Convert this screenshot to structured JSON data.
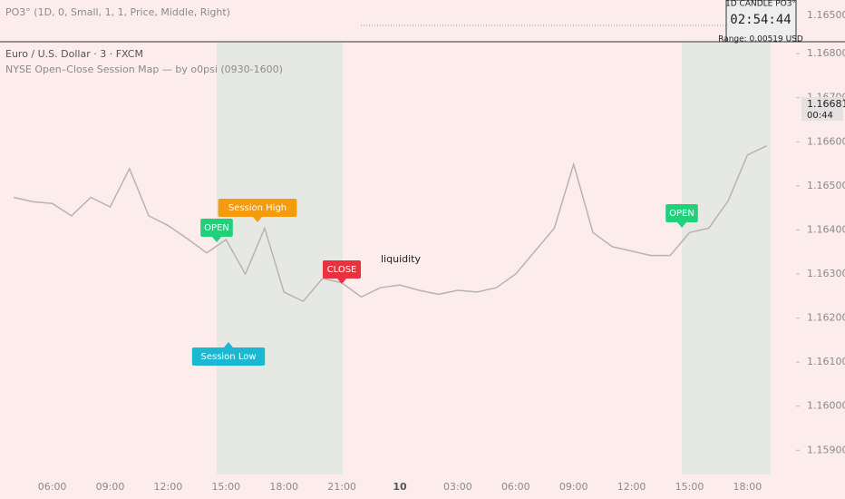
{
  "indicator_pane": {
    "settings": "PO3° (1D, 0, Small, 1, 1, Price, Middle, Right)",
    "box_title": "1D CANDLE PO3°",
    "countdown": "02:54:44",
    "range": "Range: 0.00519 USD",
    "price_label": "1.16500"
  },
  "chart_data": {
    "type": "line",
    "title": "Euro / U.S. Dollar · 3 · FXCM",
    "subtitle": "NYSE Open–Close Session Map — by o0psi (0930-1600)",
    "color": "#b8b2b2",
    "categories": [
      null,
      null,
      "06:00",
      null,
      null,
      "09:00",
      null,
      null,
      "12:00",
      null,
      null,
      "15:00",
      null,
      null,
      "18:00",
      null,
      null,
      "21:00",
      null,
      null,
      "10",
      null,
      null,
      "03:00",
      null,
      null,
      "06:00",
      null,
      null,
      "09:00",
      null,
      null,
      "12:00",
      null,
      null,
      "15:00",
      null,
      null,
      "18:00",
      null
    ],
    "values": [
      1.16474,
      1.16464,
      1.1646,
      1.16432,
      1.16474,
      1.16452,
      1.16539,
      1.16432,
      1.1641,
      1.1638,
      1.16348,
      1.16378,
      1.163,
      1.16404,
      1.16259,
      1.16238,
      1.1629,
      1.1628,
      1.16248,
      1.16269,
      1.16275,
      1.16263,
      1.16254,
      1.16263,
      1.16259,
      1.16269,
      1.163,
      1.16352,
      1.16404,
      1.16549,
      1.16394,
      1.16362,
      1.16352,
      1.16342,
      1.16342,
      1.16394,
      1.16404,
      1.16466,
      1.1657,
      1.16591
    ],
    "ylim": [
      1.15845,
      1.16825
    ],
    "yticks": [
      {
        "value": 1.159,
        "label": "1.15900"
      },
      {
        "value": 1.16,
        "label": "1.16000"
      },
      {
        "value": 1.161,
        "label": "1.16100"
      },
      {
        "value": 1.162,
        "label": "1.16200"
      },
      {
        "value": 1.163,
        "label": "1.16300"
      },
      {
        "value": 1.164,
        "label": "1.16400"
      },
      {
        "value": 1.165,
        "label": "1.16500"
      },
      {
        "value": 1.166,
        "label": "1.16600"
      },
      {
        "value": 1.167,
        "label": "1.16700"
      },
      {
        "value": 1.168,
        "label": "1.16800"
      }
    ],
    "annotations": [
      "OPEN",
      "Session High",
      "Session Low",
      "CLOSE",
      "liquidity",
      "OPEN"
    ],
    "last_price": {
      "value": 1.16681,
      "label": "1.16681",
      "timer": "00:44"
    }
  }
}
